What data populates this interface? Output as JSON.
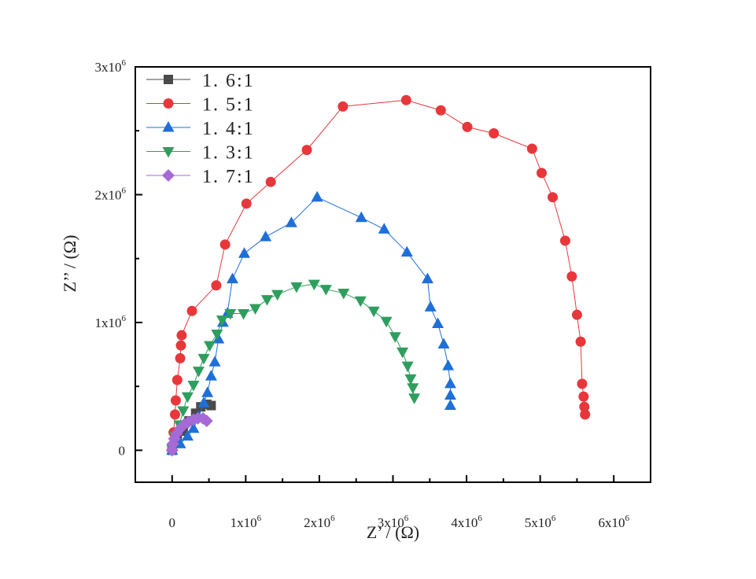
{
  "chart_data": {
    "type": "scatter",
    "title": "",
    "xlabel": "Z’ / (Ω)",
    "ylabel": "Z’’ / (Ω)",
    "xlim": [
      -500000,
      6500000
    ],
    "ylim": [
      -250000,
      3000000
    ],
    "x_ticks": [
      {
        "value": 0,
        "label": "0",
        "exp": ""
      },
      {
        "value": 1000000,
        "label": "1x10",
        "exp": "6"
      },
      {
        "value": 2000000,
        "label": "2x10",
        "exp": "6"
      },
      {
        "value": 3000000,
        "label": "3x10",
        "exp": "6"
      },
      {
        "value": 4000000,
        "label": "4x10",
        "exp": "6"
      },
      {
        "value": 5000000,
        "label": "5x10",
        "exp": "6"
      },
      {
        "value": 6000000,
        "label": "6x10",
        "exp": "6"
      }
    ],
    "y_ticks": [
      {
        "value": 0,
        "label": "0",
        "exp": ""
      },
      {
        "value": 1000000,
        "label": "1x10",
        "exp": "6"
      },
      {
        "value": 2000000,
        "label": "2x10",
        "exp": "6"
      },
      {
        "value": 3000000,
        "label": "3x10",
        "exp": "6"
      }
    ],
    "grid": false,
    "legend_position": "top-left",
    "series": [
      {
        "name": "1.6:1",
        "marker": "square",
        "color": "#4a4a4a",
        "x": [
          0,
          70000,
          150000,
          230000,
          320000,
          390000,
          470000,
          530000
        ],
        "y": [
          0,
          80000,
          150000,
          230000,
          290000,
          340000,
          360000,
          350000
        ]
      },
      {
        "name": "1.5:1",
        "marker": "circle",
        "color": "#e8373b",
        "x": [
          0,
          20000,
          40000,
          50000,
          70000,
          110000,
          120000,
          130000,
          270000,
          600000,
          720000,
          1010000,
          1340000,
          1830000,
          2320000,
          3180000,
          3650000,
          4010000,
          4370000,
          4890000,
          5020000,
          5170000,
          5340000,
          5430000,
          5500000,
          5550000,
          5570000,
          5590000,
          5600000,
          5610000
        ],
        "y": [
          10000,
          140000,
          280000,
          390000,
          550000,
          720000,
          820000,
          900000,
          1090000,
          1290000,
          1610000,
          1930000,
          2100000,
          2350000,
          2690000,
          2740000,
          2660000,
          2530000,
          2480000,
          2360000,
          2170000,
          1980000,
          1640000,
          1360000,
          1060000,
          850000,
          520000,
          420000,
          340000,
          280000
        ]
      },
      {
        "name": "1.4:1",
        "marker": "triangle-up",
        "color": "#1f6fd8",
        "x": [
          0,
          110000,
          210000,
          290000,
          360000,
          430000,
          480000,
          530000,
          580000,
          630000,
          690000,
          750000,
          820000,
          980000,
          1270000,
          1620000,
          1970000,
          2570000,
          2880000,
          3190000,
          3470000,
          3510000,
          3610000,
          3690000,
          3750000,
          3780000,
          3780000,
          3780000
        ],
        "y": [
          0,
          50000,
          110000,
          170000,
          260000,
          370000,
          450000,
          580000,
          690000,
          870000,
          1000000,
          1070000,
          1340000,
          1540000,
          1670000,
          1780000,
          1980000,
          1820000,
          1730000,
          1550000,
          1340000,
          1120000,
          990000,
          830000,
          660000,
          520000,
          430000,
          350000
        ]
      },
      {
        "name": "1.3:1",
        "marker": "triangle-down",
        "color": "#2e9e5e",
        "x": [
          0,
          40000,
          100000,
          150000,
          210000,
          290000,
          360000,
          430000,
          510000,
          610000,
          680000,
          790000,
          970000,
          1130000,
          1290000,
          1430000,
          1690000,
          1930000,
          2090000,
          2330000,
          2560000,
          2740000,
          2910000,
          3030000,
          3130000,
          3200000,
          3240000,
          3270000,
          3290000
        ],
        "y": [
          10000,
          110000,
          200000,
          310000,
          420000,
          510000,
          620000,
          720000,
          820000,
          910000,
          1020000,
          1070000,
          1070000,
          1110000,
          1180000,
          1220000,
          1280000,
          1300000,
          1260000,
          1230000,
          1170000,
          1090000,
          1010000,
          890000,
          770000,
          660000,
          560000,
          490000,
          410000
        ]
      },
      {
        "name": "1.7:1",
        "marker": "diamond",
        "color": "#a66ad8",
        "x": [
          0,
          10000,
          30000,
          60000,
          110000,
          160000,
          220000,
          290000,
          350000,
          420000,
          470000
        ],
        "y": [
          0,
          50000,
          90000,
          130000,
          170000,
          200000,
          220000,
          240000,
          250000,
          250000,
          230000
        ]
      }
    ]
  }
}
